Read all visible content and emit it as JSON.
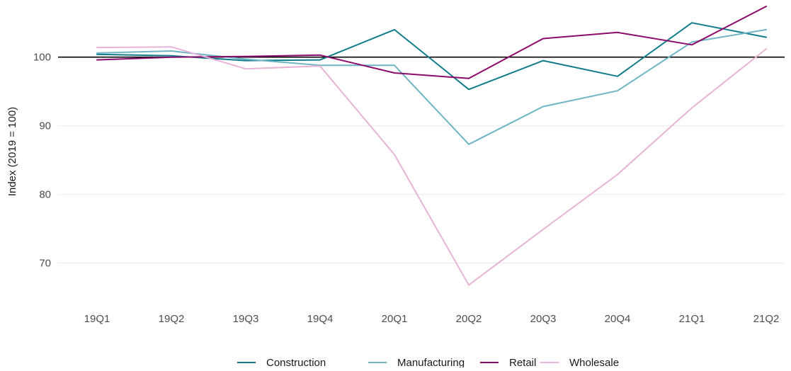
{
  "chart_data": {
    "type": "line",
    "title": "",
    "xlabel": "",
    "ylabel": "Index (2019 = 100)",
    "categories": [
      "19Q1",
      "19Q2",
      "19Q3",
      "19Q4",
      "20Q1",
      "20Q2",
      "20Q3",
      "20Q4",
      "21Q1",
      "21Q2"
    ],
    "ylim": [
      65,
      107.5
    ],
    "yticks": [
      70,
      80,
      90,
      100
    ],
    "grid": true,
    "reference_line": 100,
    "legend_position": "bottom",
    "series": [
      {
        "name": "Construction",
        "color": "#0f7c8c",
        "values": [
          100.4,
          100.2,
          99.5,
          99.6,
          104.0,
          95.3,
          99.5,
          97.2,
          105.0,
          102.9
        ]
      },
      {
        "name": "Manufacturing",
        "color": "#6eb5c4",
        "values": [
          100.6,
          100.9,
          99.7,
          98.8,
          98.8,
          87.3,
          92.8,
          95.1,
          102.2,
          104.0
        ]
      },
      {
        "name": "Retail",
        "color": "#8c0a6c",
        "values": [
          99.6,
          100.0,
          100.1,
          100.3,
          97.7,
          96.9,
          102.7,
          103.6,
          101.8,
          107.4
        ]
      },
      {
        "name": "Wholesale",
        "color": "#e8b3d7",
        "values": [
          101.4,
          101.5,
          98.3,
          98.7,
          85.8,
          66.8,
          74.9,
          82.9,
          92.6,
          101.2
        ]
      }
    ]
  }
}
